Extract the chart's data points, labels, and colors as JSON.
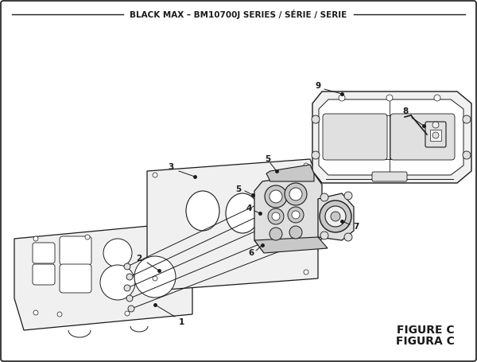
{
  "title": "BLACK MAX – BM10700J SERIES / SÉRIE / SERIE",
  "figure_label": "FIGURE C",
  "figura_label": "FIGURA C",
  "bg_color": "#ffffff",
  "lc": "#1a1a1a",
  "fill_light": "#f0f0f0",
  "fill_mid": "#e0e0e0",
  "fill_dark": "#c8c8c8",
  "title_fontsize": 7.5,
  "label_fontsize": 9
}
